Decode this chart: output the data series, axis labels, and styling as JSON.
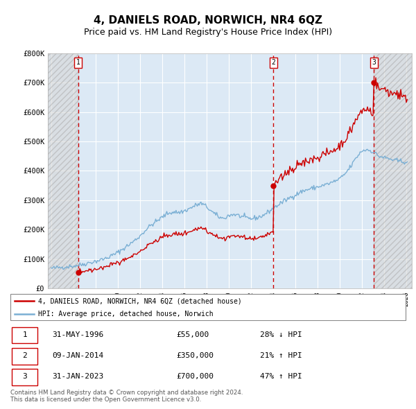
{
  "title": "4, DANIELS ROAD, NORWICH, NR4 6QZ",
  "subtitle": "Price paid vs. HM Land Registry's House Price Index (HPI)",
  "title_fontsize": 11,
  "subtitle_fontsize": 9,
  "background_color": "#ffffff",
  "plot_bg_color": "#dce9f5",
  "grid_color": "#ffffff",
  "ylim": [
    0,
    800000
  ],
  "xlim_start": 1993.7,
  "xlim_end": 2026.5,
  "yticks": [
    0,
    100000,
    200000,
    300000,
    400000,
    500000,
    600000,
    700000,
    800000
  ],
  "ytick_labels": [
    "£0",
    "£100K",
    "£200K",
    "£300K",
    "£400K",
    "£500K",
    "£600K",
    "£700K",
    "£800K"
  ],
  "transactions": [
    {
      "label": "1",
      "date": "31-MAY-1996",
      "price": 55000,
      "year": 1996.42,
      "price_str": "£55,000",
      "hpi_rel": "28% ↓ HPI"
    },
    {
      "label": "2",
      "date": "09-JAN-2014",
      "price": 350000,
      "year": 2014.03,
      "price_str": "£350,000",
      "hpi_rel": "21% ↑ HPI"
    },
    {
      "label": "3",
      "date": "31-JAN-2023",
      "price": 700000,
      "year": 2023.08,
      "price_str": "£700,000",
      "hpi_rel": "47% ↑ HPI"
    }
  ],
  "red_line_color": "#cc0000",
  "blue_line_color": "#7aafd4",
  "legend_entries": [
    "4, DANIELS ROAD, NORWICH, NR4 6QZ (detached house)",
    "HPI: Average price, detached house, Norwich"
  ],
  "footer_text": "Contains HM Land Registry data © Crown copyright and database right 2024.\nThis data is licensed under the Open Government Licence v3.0."
}
